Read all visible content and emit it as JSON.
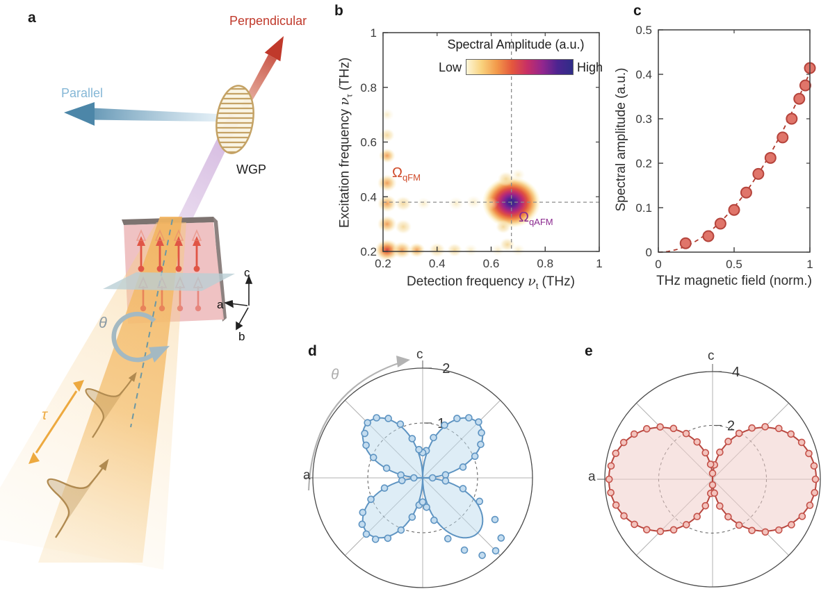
{
  "figure": {
    "panel_labels": {
      "a": "a",
      "b": "b",
      "c": "c",
      "d": "d",
      "e": "e"
    }
  },
  "panel_a": {
    "labels": {
      "perpendicular": "Perpendicular",
      "parallel": "Parallel",
      "wgp": "WGP",
      "theta": "θ",
      "tau": "τ",
      "axis_a": "a",
      "axis_b": "b",
      "axis_c": "c"
    },
    "colors": {
      "perpendicular_text": "#c0392b",
      "parallel_text": "#85b7d6",
      "red_arrow": "#c0392b",
      "blue_arrow": "#4c86a8",
      "wgp": "#c4a265",
      "violet_beam": "#cdb0da",
      "sample": "#eebfc0",
      "spin_arrow": "#e05545",
      "plane": "#b9ced5",
      "thz_beam": "#f2b45f",
      "tau_arrow": "#eda93f",
      "theta_ring": "#a4b9c2",
      "beam_axis_dash": "#6b97a3"
    }
  },
  "chart_data": [
    {
      "id": "b",
      "type": "heatmap",
      "legend_title": "Spectral Amplitude (a.u.)",
      "colorbar": {
        "low_label": "Low",
        "high_label": "High",
        "stops": [
          "#fdf6d8",
          "#f9d27d",
          "#f2994a",
          "#e4573d",
          "#c72f66",
          "#93268e",
          "#4c2490",
          "#2f2d87"
        ]
      },
      "xlabel": {
        "pre": "Detection frequency ",
        "nu": "ν",
        "sub": "t",
        "post": " (THz)"
      },
      "ylabel": {
        "pre": "Excitation frequency ",
        "nu": "ν",
        "sub": "τ",
        "post": " (THz)"
      },
      "xlim": [
        0.2,
        1
      ],
      "ylim": [
        0.2,
        1
      ],
      "xticks": [
        0.2,
        0.4,
        0.6,
        0.8,
        1
      ],
      "xtick_labels": [
        "0.2",
        "0.4",
        "0.6",
        "0.8",
        "1"
      ],
      "yticks": [
        0.2,
        0.4,
        0.6,
        0.8,
        1
      ],
      "ytick_labels": [
        "0.2",
        "0.4",
        "0.6",
        "0.8",
        "1"
      ],
      "crosshair": {
        "x": 0.675,
        "y": 0.38
      },
      "annotations": [
        {
          "main": "Ω",
          "sub": "qFM",
          "color": "#cf4a28"
        },
        {
          "main": "Ω",
          "sub": "qAFM",
          "color": "#8b2a8f"
        }
      ],
      "peaks": [
        {
          "x": 0.675,
          "y": 0.38,
          "level": "peak",
          "s": 42
        },
        {
          "x": 0.215,
          "y": 0.205,
          "level": "strong",
          "s": 18
        },
        {
          "x": 0.215,
          "y": 0.45,
          "level": "med",
          "s": 14
        },
        {
          "x": 0.215,
          "y": 0.375,
          "level": "med",
          "s": 14
        },
        {
          "x": 0.215,
          "y": 0.3,
          "level": "med",
          "s": 14
        },
        {
          "x": 0.215,
          "y": 0.55,
          "level": "med",
          "s": 12
        },
        {
          "x": 0.27,
          "y": 0.205,
          "level": "med",
          "s": 14
        },
        {
          "x": 0.325,
          "y": 0.205,
          "level": "med",
          "s": 12
        },
        {
          "x": 0.4,
          "y": 0.205,
          "level": "faint",
          "s": 12
        },
        {
          "x": 0.465,
          "y": 0.205,
          "level": "faint",
          "s": 11
        },
        {
          "x": 0.525,
          "y": 0.205,
          "level": "vfaint",
          "s": 10
        },
        {
          "x": 0.275,
          "y": 0.29,
          "level": "faint",
          "s": 12
        },
        {
          "x": 0.275,
          "y": 0.375,
          "level": "faint",
          "s": 12
        },
        {
          "x": 0.35,
          "y": 0.375,
          "level": "vfaint",
          "s": 10
        },
        {
          "x": 0.215,
          "y": 0.625,
          "level": "faint",
          "s": 11
        },
        {
          "x": 0.215,
          "y": 0.7,
          "level": "vfaint",
          "s": 10
        },
        {
          "x": 0.47,
          "y": 0.375,
          "level": "vfaint",
          "s": 11
        },
        {
          "x": 0.535,
          "y": 0.38,
          "level": "vfaint",
          "s": 11
        },
        {
          "x": 0.6,
          "y": 0.375,
          "level": "vfaint",
          "s": 10
        },
        {
          "x": 0.655,
          "y": 0.465,
          "level": "faint",
          "s": 12
        },
        {
          "x": 0.7,
          "y": 0.48,
          "level": "vfaint",
          "s": 10
        },
        {
          "x": 0.645,
          "y": 0.29,
          "level": "faint",
          "s": 11
        },
        {
          "x": 0.66,
          "y": 0.225,
          "level": "faint",
          "s": 11
        },
        {
          "x": 0.7,
          "y": 0.205,
          "level": "vfaint",
          "s": 10
        },
        {
          "x": 0.625,
          "y": 0.205,
          "level": "vfaint",
          "s": 10
        }
      ]
    },
    {
      "id": "c",
      "type": "scatter",
      "xlabel": "THz magnetic field (norm.)",
      "ylabel": "Spectral amplitude (a.u.)",
      "xlim": [
        0,
        1
      ],
      "ylim": [
        0,
        0.5
      ],
      "xticks": [
        0,
        0.5,
        1
      ],
      "xtick_labels": [
        "0",
        "0.5",
        "1"
      ],
      "yticks": [
        0,
        0.1,
        0.2,
        0.3,
        0.4,
        0.5
      ],
      "ytick_labels": [
        "0",
        "0.1",
        "0.2",
        "0.3",
        "0.4",
        "0.5"
      ],
      "points": {
        "x": [
          0.18,
          0.33,
          0.41,
          0.5,
          0.58,
          0.66,
          0.74,
          0.82,
          0.88,
          0.93,
          0.97,
          1.0
        ],
        "y": [
          0.02,
          0.036,
          0.064,
          0.095,
          0.134,
          0.176,
          0.212,
          0.258,
          0.3,
          0.345,
          0.375,
          0.414
        ]
      },
      "fit": {
        "type": "quadratic",
        "coefficient": 0.405,
        "style": "dashed",
        "color": "#b03a2e"
      },
      "point_style": {
        "fill": "#e0756a",
        "stroke": "#b5443c",
        "radius": 7.5
      }
    },
    {
      "id": "d",
      "type": "polar",
      "axis_top_label": "c",
      "axis_left_label": "a",
      "theta_label": "θ",
      "rmax": 2,
      "rings": [
        {
          "r": 1,
          "label": "1"
        },
        {
          "r": 2,
          "label": "2"
        }
      ],
      "model": {
        "kind": "sin2",
        "A": 1.42,
        "formula": "r = A·|sin(2θ)|"
      },
      "points": {
        "theta_deg": [
          0,
          7.5,
          15,
          22.5,
          30,
          37.5,
          45,
          52.5,
          60,
          67.5,
          75,
          82.5,
          90,
          97.5,
          105,
          112.5,
          120,
          127.5,
          135,
          142.5,
          150,
          157.5,
          165,
          172.5,
          180,
          187.5,
          195,
          202.5,
          210,
          217.5,
          225,
          232.5,
          240,
          247.5,
          255,
          262.5,
          270,
          277.5,
          285,
          292.5,
          300,
          307.5,
          315,
          322.5,
          330,
          337.5,
          345,
          352.5
        ],
        "r": [
          0.18,
          0.42,
          0.76,
          1.03,
          1.22,
          1.35,
          1.44,
          1.38,
          1.25,
          1.04,
          0.76,
          0.5,
          0.46,
          0.52,
          0.74,
          1.06,
          1.25,
          1.38,
          1.42,
          1.33,
          1.19,
          0.97,
          0.68,
          0.4,
          0.16,
          0.38,
          0.72,
          1.02,
          1.26,
          1.39,
          1.45,
          1.41,
          1.27,
          1.03,
          0.74,
          0.5,
          0.44,
          0.54,
          0.8,
          1.2,
          1.52,
          1.78,
          1.88,
          1.8,
          1.52,
          1.12,
          0.76,
          0.42
        ]
      },
      "colors": {
        "stroke": "#5e94c2",
        "fill": "rgba(189,219,238,0.50)",
        "point_fill": "#c3dcEF",
        "point_stroke": "#5e94c2",
        "theta": "#adadad"
      }
    },
    {
      "id": "e",
      "type": "polar",
      "axis_top_label": "c",
      "axis_left_label": "a",
      "rmax": 4,
      "rings": [
        {
          "r": 2,
          "label": "2"
        },
        {
          "r": 4,
          "label": "4"
        }
      ],
      "model": {
        "kind": "cos",
        "A": 3.85,
        "formula": "r = A·|cos(θ)|"
      },
      "points": {
        "theta_deg": [
          0,
          7.5,
          15,
          22.5,
          30,
          37.5,
          45,
          52.5,
          60,
          67.5,
          75,
          82.5,
          90,
          97.5,
          105,
          112.5,
          120,
          127.5,
          135,
          142.5,
          150,
          157.5,
          165,
          172.5,
          180,
          187.5,
          195,
          202.5,
          210,
          217.5,
          225,
          232.5,
          240,
          247.5,
          255,
          262.5,
          270,
          277.5,
          285,
          292.5,
          300,
          307.5,
          315,
          322.5,
          330,
          337.5,
          345,
          352.5
        ],
        "r": [
          3.82,
          3.8,
          3.7,
          3.58,
          3.36,
          3.1,
          2.76,
          2.4,
          1.97,
          1.52,
          1.04,
          0.54,
          0.22,
          0.56,
          1.02,
          1.5,
          1.96,
          2.38,
          2.75,
          3.08,
          3.36,
          3.57,
          3.72,
          3.8,
          3.84,
          3.81,
          3.71,
          3.56,
          3.35,
          3.08,
          2.74,
          2.37,
          1.95,
          1.5,
          1.02,
          0.53,
          0.21,
          0.52,
          1.03,
          1.51,
          1.97,
          2.4,
          2.77,
          3.1,
          3.38,
          3.6,
          3.74,
          3.82
        ]
      },
      "colors": {
        "stroke": "#b8463e",
        "fill": "rgba(240,205,202,0.55)",
        "point_fill": "#f3c3bd",
        "point_stroke": "#c4524a"
      }
    }
  ]
}
